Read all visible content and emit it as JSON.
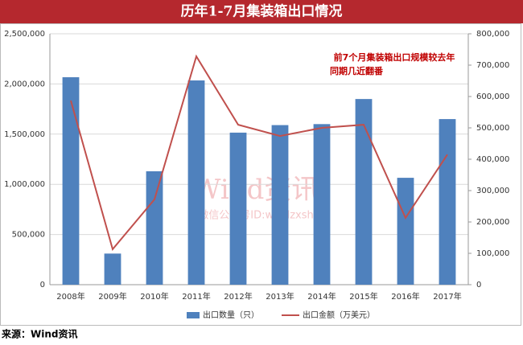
{
  "chart_data": {
    "type": "bar_line",
    "title": "历年1-7月集装箱出口情况",
    "categories": [
      "2008年",
      "2009年",
      "2010年",
      "2011年",
      "2012年",
      "2013年",
      "2014年",
      "2015年",
      "2016年",
      "2017年"
    ],
    "series": [
      {
        "name": "出口数量（只）",
        "color": "#4f81bd",
        "type": "bar",
        "axis": "y",
        "values": [
          2067000,
          310000,
          1130000,
          2035000,
          1515000,
          1590000,
          1600000,
          1850000,
          1065000,
          1650000
        ]
      },
      {
        "name": "出口金额（万美元）",
        "color": "#c0504d",
        "type": "line",
        "axis": "y2",
        "values": [
          587000,
          113000,
          272000,
          728000,
          510000,
          474000,
          500000,
          510000,
          213000,
          415000
        ]
      }
    ],
    "ylim": [
      0,
      2500000
    ],
    "yticks": [
      0,
      {
        "value": 500000,
        "label": "500,000"
      },
      {
        "value": 1000000,
        "label": "1,000,000"
      },
      {
        "value": 1500000,
        "label": "1,500,000"
      },
      {
        "value": 2000000,
        "label": "2,000,000"
      },
      {
        "value": 2500000,
        "label": "2,500,000"
      }
    ],
    "y2lim": [
      0,
      800000
    ],
    "y2ticks": [
      0,
      {
        "value": 100000,
        "label": "100,000"
      },
      {
        "value": 200000,
        "label": "200,000"
      },
      {
        "value": 300000,
        "label": "300,000"
      },
      {
        "value": 400000,
        "label": "400,000"
      },
      {
        "value": 500000,
        "label": "500,000"
      },
      {
        "value": 600000,
        "label": "600,000"
      },
      {
        "value": 700000,
        "label": "700,000"
      },
      {
        "value": 800000,
        "label": "800,000"
      }
    ],
    "grid": true,
    "legend": "bottom",
    "annotation": [
      "前7个月集装箱出口规模较去年",
      "同期几近翻番"
    ],
    "watermark": [
      "Wind资讯",
      "微信公众号ID:windzxsh"
    ],
    "source": "来源：Wind资讯"
  }
}
